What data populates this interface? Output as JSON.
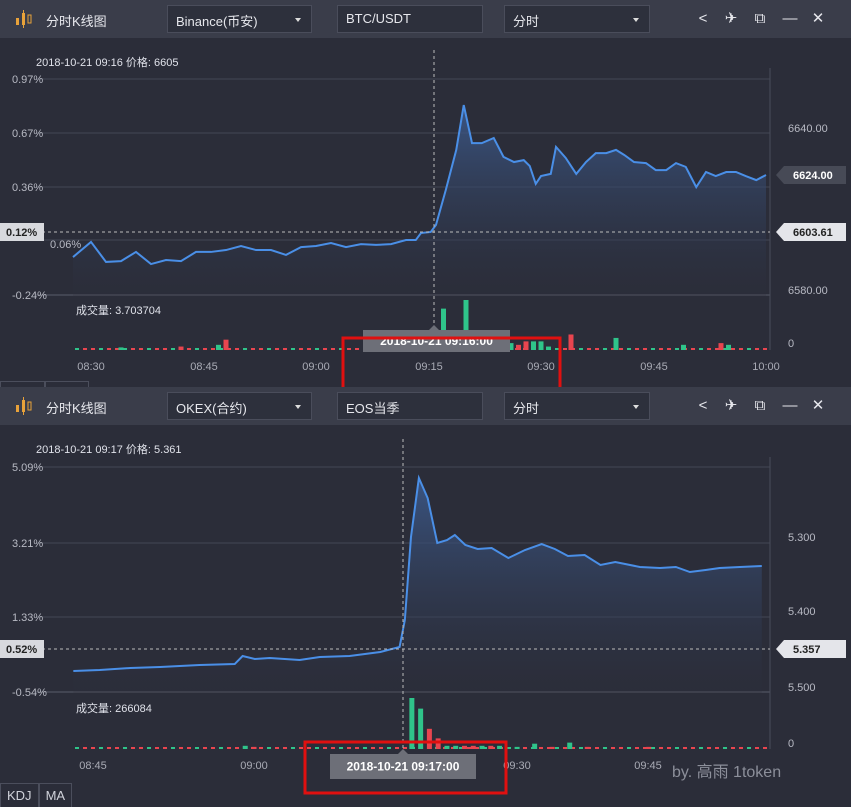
{
  "panels": [
    {
      "title": "分时K线图",
      "exchange": "Binance(币安)",
      "symbol": "BTC/USDT",
      "interval": "分时",
      "info": "2018-10-21 09:16  价格: 6605",
      "volume_label": "成交量: 3.703704",
      "crosshair_tooltip": "2018-10-21 09:16:00",
      "pct_labels": [
        "0.97%",
        "0.67%",
        "0.36%",
        "0.06%",
        "-0.24%"
      ],
      "cross_pct": "0.12%",
      "price_labels": [
        "6640.00",
        "6580.00"
      ],
      "volume_zero": "0",
      "last_price_badge": "6624.00",
      "cross_price_badge": "6603.61",
      "time_labels": [
        "08:30",
        "08:45",
        "09:00",
        "09:15",
        "09:30",
        "09:45",
        "10:00"
      ],
      "chart_data": {
        "type": "area",
        "x_unit": "minutes since 08:30",
        "price_ticks": [
          6580,
          6640
        ],
        "points": [
          [
            -2.4,
            6592.2
          ],
          [
            0,
            6597.8
          ],
          [
            2,
            6590.4
          ],
          [
            4,
            6590.7
          ],
          [
            6,
            6594.1
          ],
          [
            8,
            6589.6
          ],
          [
            10,
            6591.1
          ],
          [
            12,
            6590.7
          ],
          [
            14,
            6594.1
          ],
          [
            16,
            6594.1
          ],
          [
            18,
            6594.8
          ],
          [
            20,
            6596.3
          ],
          [
            22,
            6594.8
          ],
          [
            24,
            6594.8
          ],
          [
            26,
            6593
          ],
          [
            28,
            6595.9
          ],
          [
            30,
            6596.3
          ],
          [
            32,
            6597.4
          ],
          [
            34,
            6595.9
          ],
          [
            36,
            6597
          ],
          [
            38,
            6596.7
          ],
          [
            40,
            6597
          ],
          [
            42,
            6598.5
          ],
          [
            43.3,
            6598.5
          ],
          [
            44,
            6601.1
          ],
          [
            45.3,
            6601.5
          ],
          [
            46,
            6604.1
          ],
          [
            47.3,
            6617
          ],
          [
            48.7,
            6631.9
          ],
          [
            49.7,
            6648.5
          ],
          [
            50.8,
            6634.4
          ],
          [
            52.1,
            6634.4
          ],
          [
            53.7,
            6636.3
          ],
          [
            55,
            6629.3
          ],
          [
            56.4,
            6627.4
          ],
          [
            57.7,
            6628.1
          ],
          [
            58.5,
            6625.9
          ],
          [
            59.3,
            6619.3
          ],
          [
            60,
            6622.2
          ],
          [
            61.3,
            6623
          ],
          [
            62,
            6633
          ],
          [
            63.3,
            6628.9
          ],
          [
            64.7,
            6623
          ],
          [
            66,
            6627.4
          ],
          [
            67.3,
            6630.7
          ],
          [
            68.7,
            6630.7
          ],
          [
            70,
            6631.9
          ],
          [
            71.1,
            6630
          ],
          [
            72.4,
            6627.4
          ],
          [
            74,
            6627
          ],
          [
            75.3,
            6624.4
          ],
          [
            76.7,
            6624.4
          ],
          [
            78,
            6627
          ],
          [
            79.3,
            6625.6
          ],
          [
            80.7,
            6618.1
          ],
          [
            82,
            6623.7
          ],
          [
            83.3,
            6622.2
          ],
          [
            84.7,
            6623.7
          ],
          [
            86,
            6623.7
          ],
          [
            87.3,
            6622.2
          ],
          [
            88.7,
            6620.7
          ],
          [
            90,
            6622.6
          ]
        ],
        "volume": [
          [
            17,
            0.3,
            "up"
          ],
          [
            18,
            0.6,
            "down"
          ],
          [
            41,
            0.2,
            "up"
          ],
          [
            47,
            2.4,
            "up"
          ],
          [
            48,
            0.75,
            "up"
          ],
          [
            49,
            0.75,
            "up"
          ],
          [
            50,
            2.9,
            "up"
          ],
          [
            51,
            0.75,
            "up"
          ],
          [
            52,
            1.1,
            "down"
          ],
          [
            53,
            0.2,
            "up"
          ],
          [
            54,
            0.3,
            "up"
          ],
          [
            55,
            0.3,
            "down"
          ],
          [
            56,
            0.4,
            "up"
          ],
          [
            57,
            0.3,
            "down"
          ],
          [
            58,
            0.5,
            "down"
          ],
          [
            59,
            0.5,
            "up"
          ],
          [
            60,
            0.5,
            "up"
          ],
          [
            61,
            0.2,
            "up"
          ],
          [
            64,
            0.9,
            "down"
          ],
          [
            70,
            0.7,
            "up"
          ],
          [
            79,
            0.3,
            "up"
          ],
          [
            84,
            0.4,
            "down"
          ],
          [
            85,
            0.3,
            "up"
          ],
          [
            12,
            0.2,
            "down"
          ],
          [
            4,
            0.15,
            "up"
          ]
        ]
      }
    },
    {
      "title": "分时K线图",
      "exchange": "OKEX(合约)",
      "symbol": "EOS当季",
      "interval": "分时",
      "info": "2018-10-21 09:17  价格: 5.361",
      "volume_label": "成交量: 266084",
      "crosshair_tooltip": "2018-10-21 09:17:00",
      "pct_labels": [
        "5.09%",
        "3.21%",
        "1.33%",
        "-0.54%"
      ],
      "cross_pct": "0.52%",
      "price_labels": [
        "5.500",
        "5.400",
        "5.300"
      ],
      "volume_zero": "0",
      "cross_price_badge": "5.357",
      "time_labels": [
        "08:45",
        "09:00",
        "09:30",
        "09:45"
      ],
      "chart_data": {
        "type": "area",
        "x_unit": "minutes since 09:00",
        "price_ticks": [
          5.3,
          5.4,
          5.5
        ],
        "points": [
          [
            -20.6,
            5.3216
          ],
          [
            -17.6,
            5.323
          ],
          [
            -14.1,
            5.3257
          ],
          [
            -10.7,
            5.327
          ],
          [
            -6.2,
            5.3297
          ],
          [
            -2.2,
            5.331
          ],
          [
            -1.3,
            5.3419
          ],
          [
            0.1,
            5.3378
          ],
          [
            1.8,
            5.3392
          ],
          [
            5.2,
            5.3365
          ],
          [
            7.5,
            5.3405
          ],
          [
            10.9,
            5.3419
          ],
          [
            14.4,
            5.3473
          ],
          [
            16.6,
            5.3541
          ],
          [
            17.2,
            5.3905
          ],
          [
            17.9,
            5.5027
          ],
          [
            18.8,
            5.5824
          ],
          [
            19.8,
            5.5554
          ],
          [
            20.9,
            5.4946
          ],
          [
            22,
            5.4986
          ],
          [
            22.9,
            5.5054
          ],
          [
            24.1,
            5.4919
          ],
          [
            25.5,
            5.4865
          ],
          [
            27.1,
            5.4878
          ],
          [
            29,
            5.4743
          ],
          [
            30.9,
            5.4851
          ],
          [
            32.8,
            5.4932
          ],
          [
            34.3,
            5.4865
          ],
          [
            35.8,
            5.477
          ],
          [
            37.7,
            5.4784
          ],
          [
            39.5,
            5.4649
          ],
          [
            41.2,
            5.4689
          ],
          [
            44,
            5.4622
          ],
          [
            46.3,
            5.4608
          ],
          [
            48.1,
            5.4622
          ],
          [
            49.7,
            5.4554
          ],
          [
            51.5,
            5.4581
          ],
          [
            53.1,
            5.4608
          ],
          [
            55.4,
            5.4622
          ],
          [
            57.9,
            5.4635
          ]
        ],
        "volume": [
          [
            -1,
            0.3,
            "up"
          ],
          [
            0,
            0.2,
            "down"
          ],
          [
            18,
            4.8,
            "up"
          ],
          [
            19,
            3.8,
            "up"
          ],
          [
            20,
            1.9,
            "down"
          ],
          [
            21,
            1.0,
            "down"
          ],
          [
            22,
            0.3,
            "up"
          ],
          [
            23,
            0.3,
            "up"
          ],
          [
            24,
            0.3,
            "down"
          ],
          [
            25,
            0.3,
            "down"
          ],
          [
            26,
            0.3,
            "up"
          ],
          [
            27,
            0.3,
            "down"
          ],
          [
            28,
            0.3,
            "up"
          ],
          [
            30,
            0.2,
            "up"
          ],
          [
            32,
            0.5,
            "up"
          ],
          [
            34,
            0.2,
            "down"
          ],
          [
            36,
            0.6,
            "up"
          ],
          [
            38,
            0.2,
            "down"
          ],
          [
            45,
            0.2,
            "down"
          ]
        ]
      }
    }
  ],
  "bottom_tabs": [
    "KDJ",
    "MA"
  ],
  "watermark": "by. 高雨     1token",
  "colors": {
    "line": "#4a8fe7",
    "up": "#2fc48a",
    "down": "#e8454f",
    "highlight": "#e01010"
  }
}
